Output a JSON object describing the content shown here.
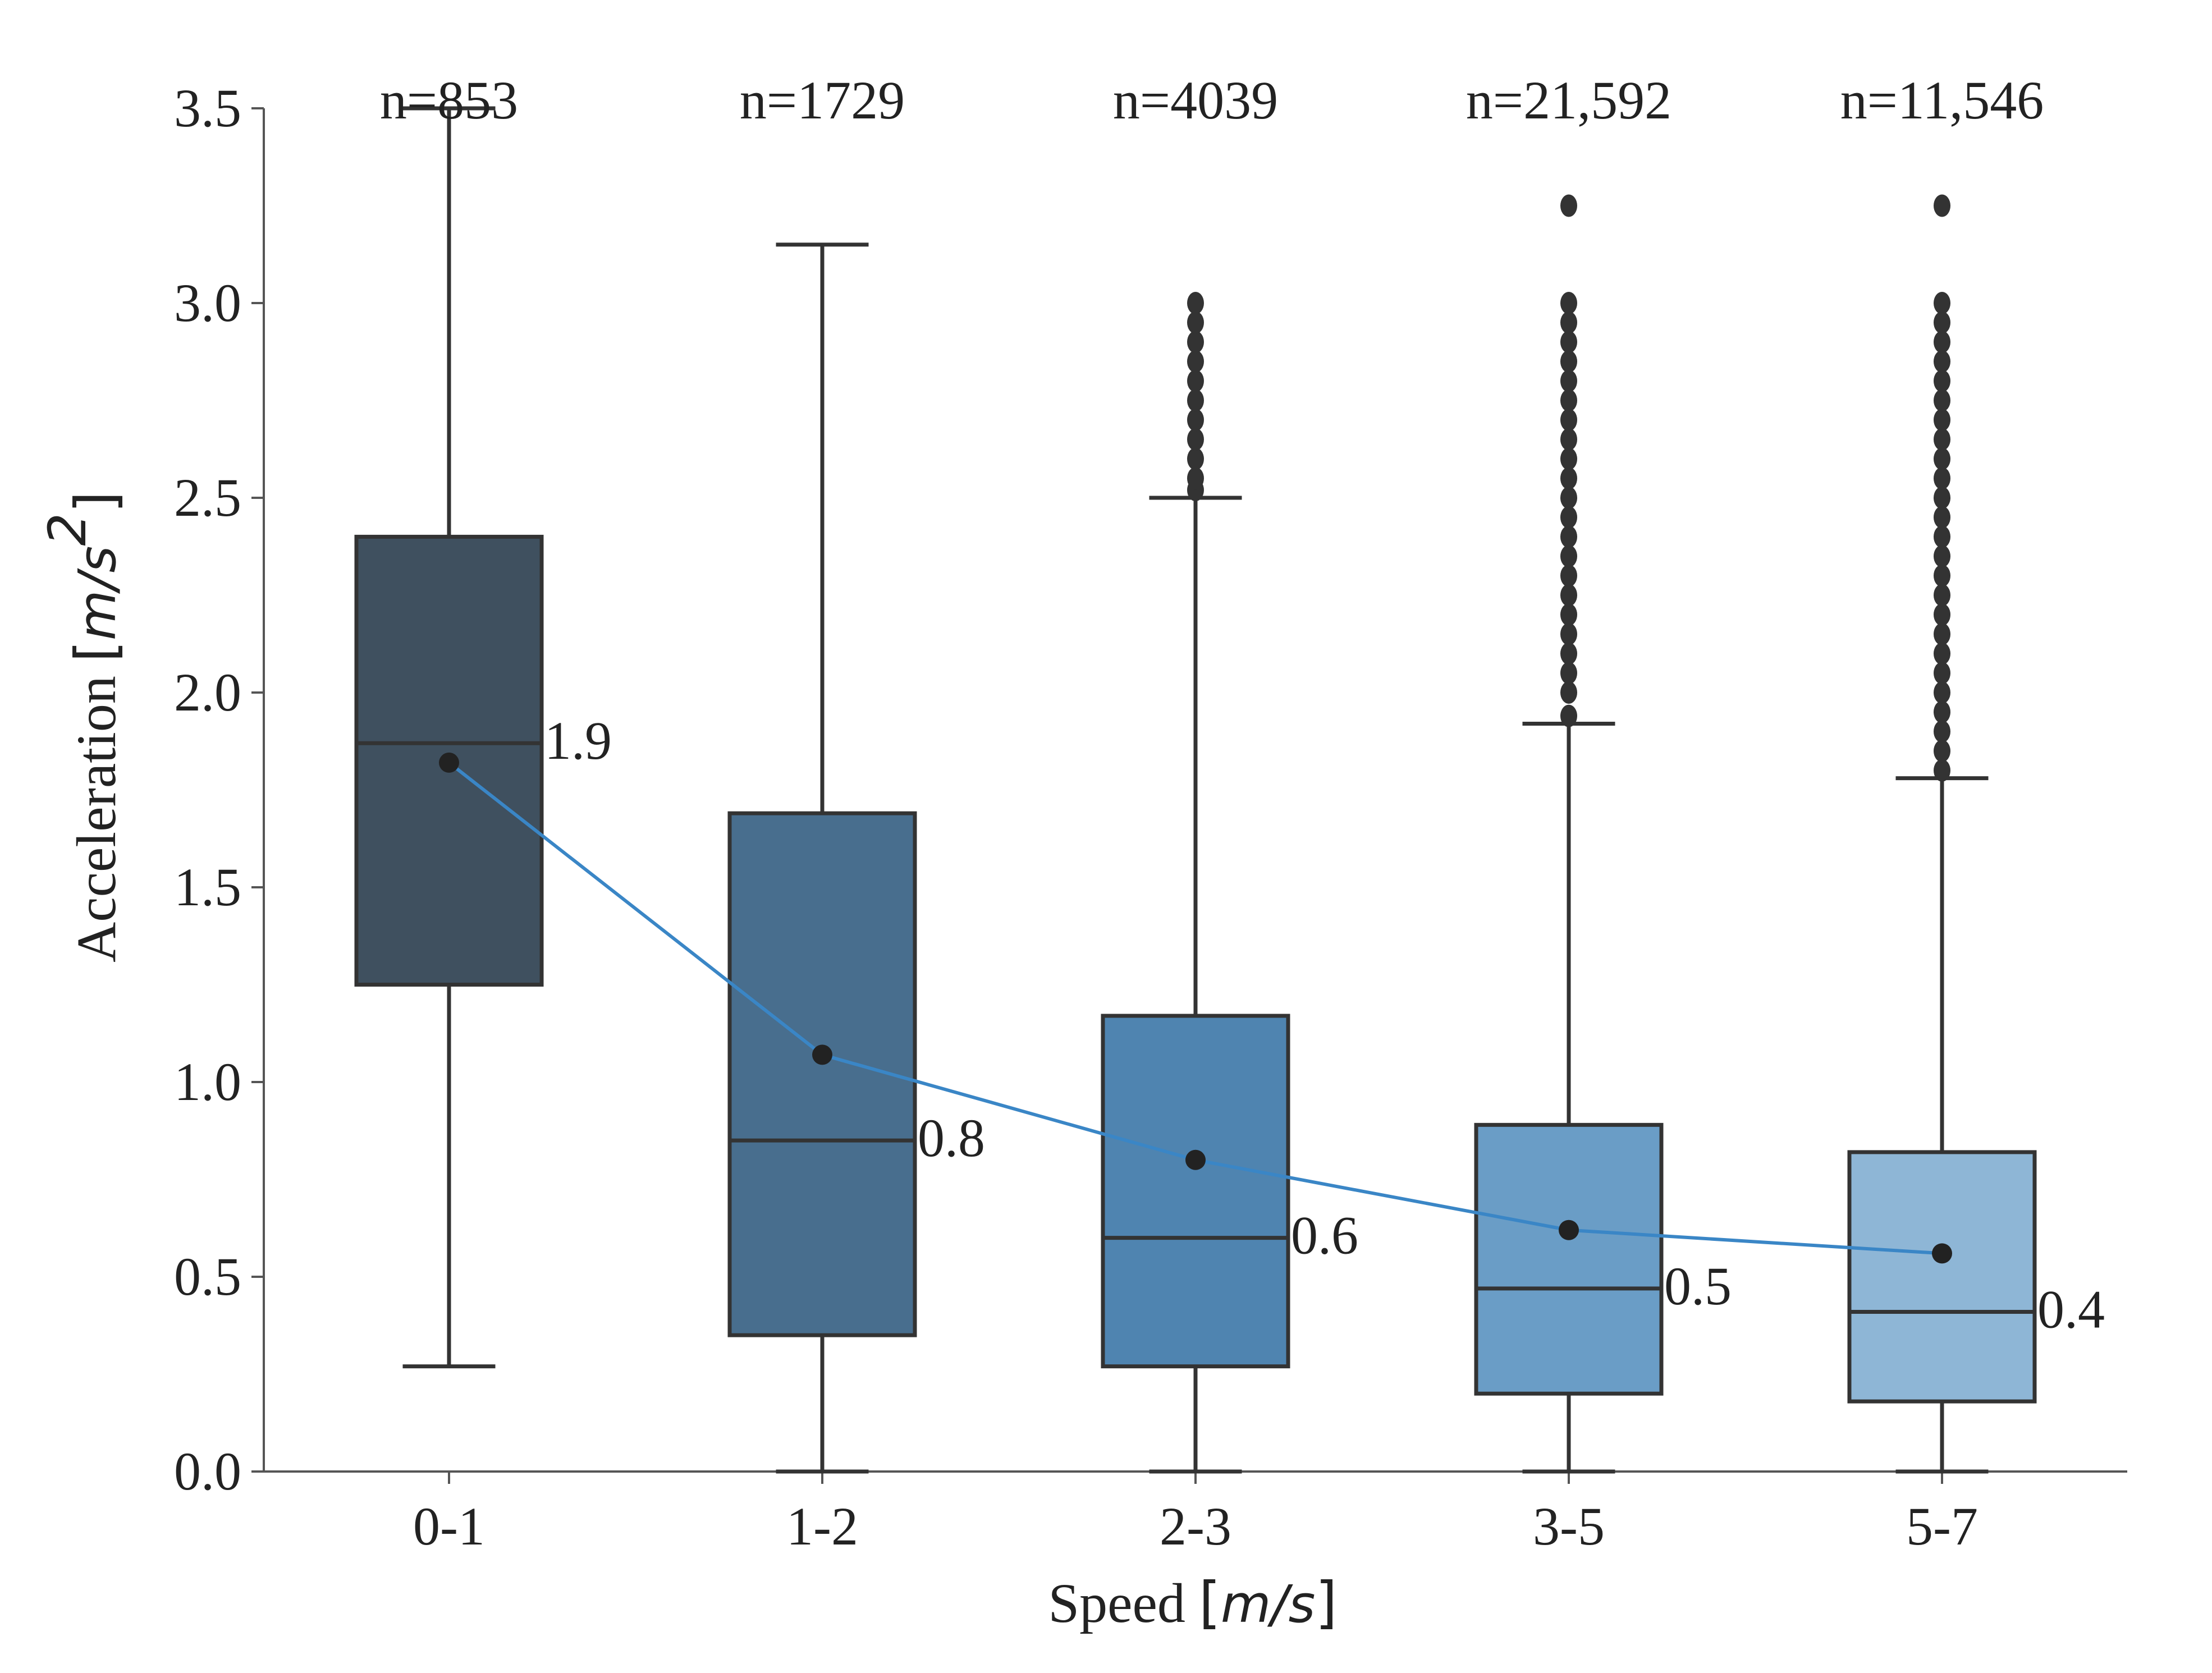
{
  "chart_data": {
    "type": "box",
    "xlabel": "Speed",
    "xlabel_unit": "m/s",
    "ylabel": "Acceleration",
    "ylabel_unit": "m/s",
    "ylabel_unit_exp": "2",
    "ylim": [
      0,
      3.5
    ],
    "yticks": [
      0.0,
      0.5,
      1.0,
      1.5,
      2.0,
      2.5,
      3.0,
      3.5
    ],
    "ytick_labels": [
      "0.0",
      "0.5",
      "1.0",
      "1.5",
      "2.0",
      "2.5",
      "3.0",
      "3.5"
    ],
    "categories": [
      "0-1",
      "1-2",
      "2-3",
      "3-5",
      "5-7"
    ],
    "counts": [
      "n=853",
      "n=1729",
      "n=4039",
      "n=21,592",
      "n=11,546"
    ],
    "median_labels": [
      "1.9",
      "0.8",
      "0.6",
      "0.5",
      "0.4"
    ],
    "boxes": [
      {
        "category": "0-1",
        "whisker_low": 0.27,
        "q1": 1.25,
        "median": 1.87,
        "q3": 2.4,
        "whisker_high": 3.5,
        "mean": 1.82,
        "outliers": []
      },
      {
        "category": "1-2",
        "whisker_low": 0.0,
        "q1": 0.35,
        "median": 0.85,
        "q3": 1.69,
        "whisker_high": 3.15,
        "mean": 1.07,
        "outliers": []
      },
      {
        "category": "2-3",
        "whisker_low": 0.0,
        "q1": 0.27,
        "median": 0.6,
        "q3": 1.17,
        "whisker_high": 2.5,
        "mean": 0.8,
        "outliers": [
          2.52,
          2.55,
          2.6,
          2.65,
          2.7,
          2.75,
          2.8,
          2.85,
          2.9,
          2.95,
          3.0
        ]
      },
      {
        "category": "3-5",
        "whisker_low": 0.0,
        "q1": 0.2,
        "median": 0.47,
        "q3": 0.89,
        "whisker_high": 1.92,
        "mean": 0.62,
        "outliers": [
          1.94,
          2.0,
          2.05,
          2.1,
          2.15,
          2.2,
          2.25,
          2.3,
          2.35,
          2.4,
          2.45,
          2.5,
          2.55,
          2.6,
          2.65,
          2.7,
          2.75,
          2.8,
          2.85,
          2.9,
          2.95,
          3.0,
          3.25
        ]
      },
      {
        "category": "5-7",
        "whisker_low": 0.0,
        "q1": 0.18,
        "median": 0.41,
        "q3": 0.82,
        "whisker_high": 1.78,
        "mean": 0.56,
        "outliers": [
          1.8,
          1.85,
          1.9,
          1.95,
          2.0,
          2.05,
          2.1,
          2.15,
          2.2,
          2.25,
          2.3,
          2.35,
          2.4,
          2.45,
          2.5,
          2.55,
          2.6,
          2.65,
          2.7,
          2.75,
          2.8,
          2.85,
          2.9,
          2.95,
          3.0,
          3.25
        ]
      }
    ],
    "mean_line": [
      1.82,
      1.07,
      0.8,
      0.62,
      0.56
    ],
    "colors": {
      "boxes": [
        "#3f505f",
        "#486e8e",
        "#4f84b0",
        "#6a9dc6",
        "#8eb6d6"
      ],
      "mean_line": "#3a86c6",
      "stroke": "#333333",
      "axis": "#555555"
    }
  }
}
